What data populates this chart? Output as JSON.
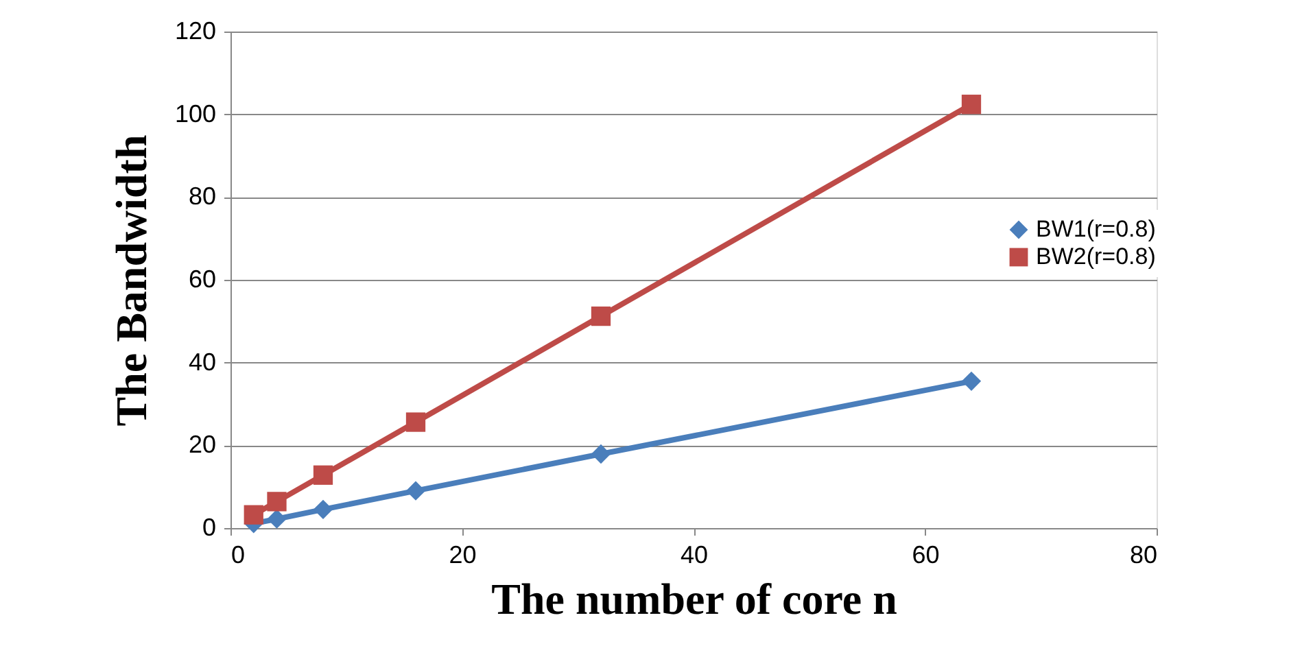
{
  "chart_data": {
    "type": "line",
    "xlabel": "The number of core n",
    "ylabel": "The Bandwidth",
    "x": [
      2,
      4,
      8,
      16,
      32,
      64
    ],
    "series": [
      {
        "name": "BW1(r=0.8)",
        "color": "#4a7ebb",
        "marker": "diamond",
        "values": [
          1.1,
          2.2,
          4.5,
          9.0,
          17.9,
          35.5
        ]
      },
      {
        "name": "BW2(r=0.8)",
        "color": "#be4b48",
        "marker": "square",
        "values": [
          3.2,
          6.4,
          12.8,
          25.6,
          51.2,
          102.4
        ]
      }
    ],
    "xlim": [
      0,
      80
    ],
    "xticks": [
      0,
      20,
      40,
      60,
      80
    ],
    "ylim": [
      0,
      120
    ],
    "yticks": [
      0,
      20,
      40,
      60,
      80,
      100,
      120
    ],
    "grid": "y",
    "legend": "right"
  }
}
